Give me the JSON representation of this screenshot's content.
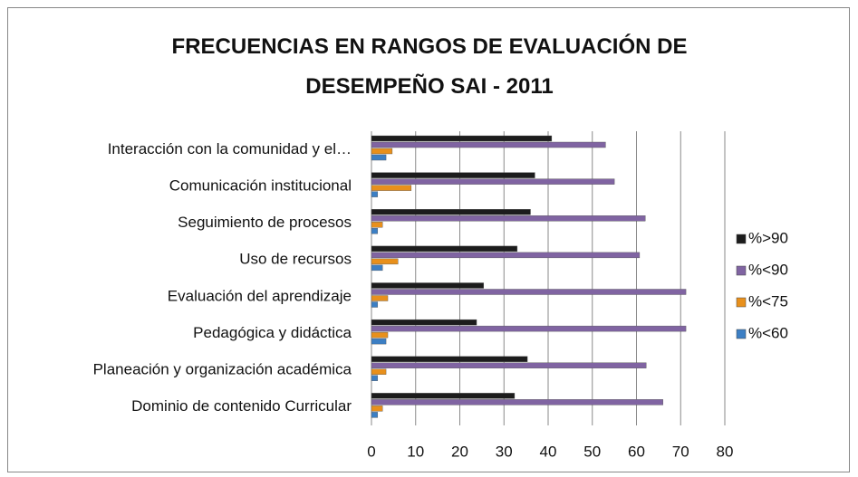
{
  "chart_data": {
    "type": "hbar",
    "title": "FRECUENCIAS EN RANGOS DE EVALUACIÓN DE DESEMPEÑO SAI - 2011",
    "categories": [
      "Interacción con la comunidad y el…",
      "Comunicación institucional",
      "Seguimiento de procesos",
      "Uso de recursos",
      "Evaluación del aprendizaje",
      "Pedagógica y didáctica",
      "Planeación y organización académica",
      "Dominio de contenido Curricular"
    ],
    "series": [
      {
        "name": "%>90",
        "color": "#1c1c1c",
        "values": [
          40.8,
          37,
          36,
          33,
          25.4,
          23.8,
          35.3,
          32.4
        ]
      },
      {
        "name": "%<90",
        "color": "#8064a2",
        "values": [
          53,
          55,
          62,
          60.7,
          71.2,
          71.2,
          62.2,
          66
        ]
      },
      {
        "name": "%<75",
        "color": "#e8901c",
        "values": [
          4.7,
          9,
          2.5,
          6,
          3.7,
          3.7,
          3.3,
          2.5
        ]
      },
      {
        "name": "%<60",
        "color": "#3c7fc4",
        "values": [
          3.3,
          1.4,
          1.4,
          2.5,
          1.4,
          3.3,
          1.4,
          1.4
        ]
      }
    ],
    "xlim": [
      0,
      80
    ],
    "xticks": [
      0,
      10,
      20,
      30,
      40,
      50,
      60,
      70,
      80
    ],
    "grid": true,
    "legend": "right"
  }
}
